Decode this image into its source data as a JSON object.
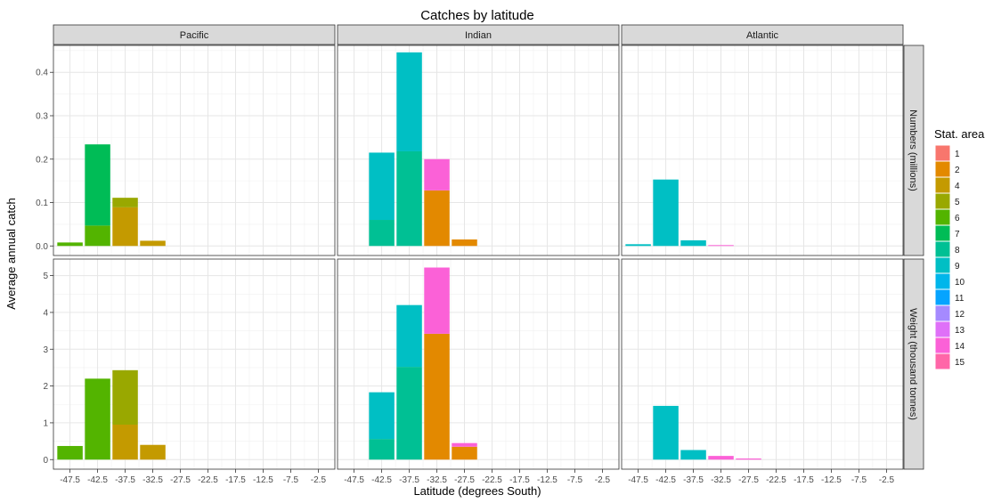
{
  "chart_data": {
    "type": "bar",
    "stacked": true,
    "title": "Catches by latitude",
    "xlabel": "Latitude (degrees South)",
    "ylabel": "Average annual catch",
    "x_ticks": [
      -47.5,
      -42.5,
      -37.5,
      -32.5,
      -27.5,
      -22.5,
      -17.5,
      -12.5,
      -7.5,
      -2.5
    ],
    "x_tick_labels": [
      "-47.5",
      "-42.5",
      "-37.5",
      "-32.5",
      "-27.5",
      "-22.5",
      "-17.5",
      "-12.5",
      "-7.5",
      "-2.5"
    ],
    "xlim": [
      -50.5,
      0.5
    ],
    "grid": true,
    "legend_placement": "right",
    "columns": [
      "Pacific",
      "Indian",
      "Atlantic"
    ],
    "rows": [
      {
        "name": "Numbers (millions)",
        "ylim": [
          -0.022,
          0.462
        ],
        "y_ticks": [
          0,
          0.1,
          0.2,
          0.3,
          0.4
        ],
        "y_tick_labels": [
          "0.0",
          "0.1",
          "0.2",
          "0.3",
          "0.4"
        ]
      },
      {
        "name": "Weight (thousand tonnes)",
        "ylim": [
          -0.26,
          5.45
        ],
        "y_ticks": [
          0,
          1,
          2,
          3,
          4,
          5
        ],
        "y_tick_labels": [
          "0",
          "1",
          "2",
          "3",
          "4",
          "5"
        ]
      }
    ],
    "legend": {
      "title": "Stat. area",
      "areas": [
        "1",
        "2",
        "4",
        "5",
        "6",
        "7",
        "8",
        "9",
        "10",
        "11",
        "12",
        "13",
        "14",
        "15"
      ],
      "colors": [
        "#F8766D",
        "#E38900",
        "#C49A00",
        "#99A800",
        "#53B400",
        "#00BC56",
        "#00C094",
        "#00BFC4",
        "#00B6EB",
        "#06A4FF",
        "#A58AFF",
        "#DF70F8",
        "#FB61D7",
        "#FF66A8"
      ]
    },
    "bars": [
      {
        "row": 0,
        "col": 0,
        "x": -47.5,
        "segments": [
          {
            "area": "6",
            "value": 0.008
          }
        ]
      },
      {
        "row": 0,
        "col": 0,
        "x": -42.5,
        "segments": [
          {
            "area": "6",
            "value": 0.047
          },
          {
            "area": "7",
            "value": 0.187
          }
        ]
      },
      {
        "row": 0,
        "col": 0,
        "x": -37.5,
        "segments": [
          {
            "area": "4",
            "value": 0.089
          },
          {
            "area": "5",
            "value": 0.022
          }
        ]
      },
      {
        "row": 0,
        "col": 0,
        "x": -32.5,
        "segments": [
          {
            "area": "4",
            "value": 0.012
          }
        ]
      },
      {
        "row": 0,
        "col": 1,
        "x": -42.5,
        "segments": [
          {
            "area": "8",
            "value": 0.06
          },
          {
            "area": "9",
            "value": 0.155
          }
        ]
      },
      {
        "row": 0,
        "col": 1,
        "x": -37.5,
        "segments": [
          {
            "area": "8",
            "value": 0.218
          },
          {
            "area": "9",
            "value": 0.228
          }
        ]
      },
      {
        "row": 0,
        "col": 1,
        "x": -32.5,
        "segments": [
          {
            "area": "2",
            "value": 0.128
          },
          {
            "area": "14",
            "value": 0.072
          }
        ]
      },
      {
        "row": 0,
        "col": 1,
        "x": -27.5,
        "segments": [
          {
            "area": "2",
            "value": 0.015
          }
        ]
      },
      {
        "row": 0,
        "col": 2,
        "x": -47.5,
        "segments": [
          {
            "area": "9",
            "value": 0.004
          }
        ]
      },
      {
        "row": 0,
        "col": 2,
        "x": -42.5,
        "segments": [
          {
            "area": "9",
            "value": 0.153
          }
        ]
      },
      {
        "row": 0,
        "col": 2,
        "x": -37.5,
        "segments": [
          {
            "area": "9",
            "value": 0.013
          }
        ]
      },
      {
        "row": 0,
        "col": 2,
        "x": -32.5,
        "segments": [
          {
            "area": "14",
            "value": 0.002
          }
        ]
      },
      {
        "row": 1,
        "col": 0,
        "x": -47.5,
        "segments": [
          {
            "area": "6",
            "value": 0.37
          }
        ]
      },
      {
        "row": 1,
        "col": 0,
        "x": -42.5,
        "segments": [
          {
            "area": "6",
            "value": 2.2
          }
        ]
      },
      {
        "row": 1,
        "col": 0,
        "x": -37.5,
        "segments": [
          {
            "area": "4",
            "value": 0.95
          },
          {
            "area": "5",
            "value": 1.48
          }
        ]
      },
      {
        "row": 1,
        "col": 0,
        "x": -32.5,
        "segments": [
          {
            "area": "4",
            "value": 0.4
          }
        ]
      },
      {
        "row": 1,
        "col": 1,
        "x": -42.5,
        "segments": [
          {
            "area": "8",
            "value": 0.56
          },
          {
            "area": "9",
            "value": 1.27
          }
        ]
      },
      {
        "row": 1,
        "col": 1,
        "x": -37.5,
        "segments": [
          {
            "area": "8",
            "value": 2.52
          },
          {
            "area": "9",
            "value": 1.68
          }
        ]
      },
      {
        "row": 1,
        "col": 1,
        "x": -32.5,
        "segments": [
          {
            "area": "2",
            "value": 3.42
          },
          {
            "area": "14",
            "value": 1.8
          }
        ]
      },
      {
        "row": 1,
        "col": 1,
        "x": -27.5,
        "segments": [
          {
            "area": "2",
            "value": 0.35
          },
          {
            "area": "14",
            "value": 0.1
          }
        ]
      },
      {
        "row": 1,
        "col": 2,
        "x": -42.5,
        "segments": [
          {
            "area": "9",
            "value": 1.46
          }
        ]
      },
      {
        "row": 1,
        "col": 2,
        "x": -37.5,
        "segments": [
          {
            "area": "9",
            "value": 0.26
          }
        ]
      },
      {
        "row": 1,
        "col": 2,
        "x": -32.5,
        "segments": [
          {
            "area": "14",
            "value": 0.1
          }
        ]
      },
      {
        "row": 1,
        "col": 2,
        "x": -27.5,
        "segments": [
          {
            "area": "14",
            "value": 0.03
          }
        ]
      }
    ]
  }
}
